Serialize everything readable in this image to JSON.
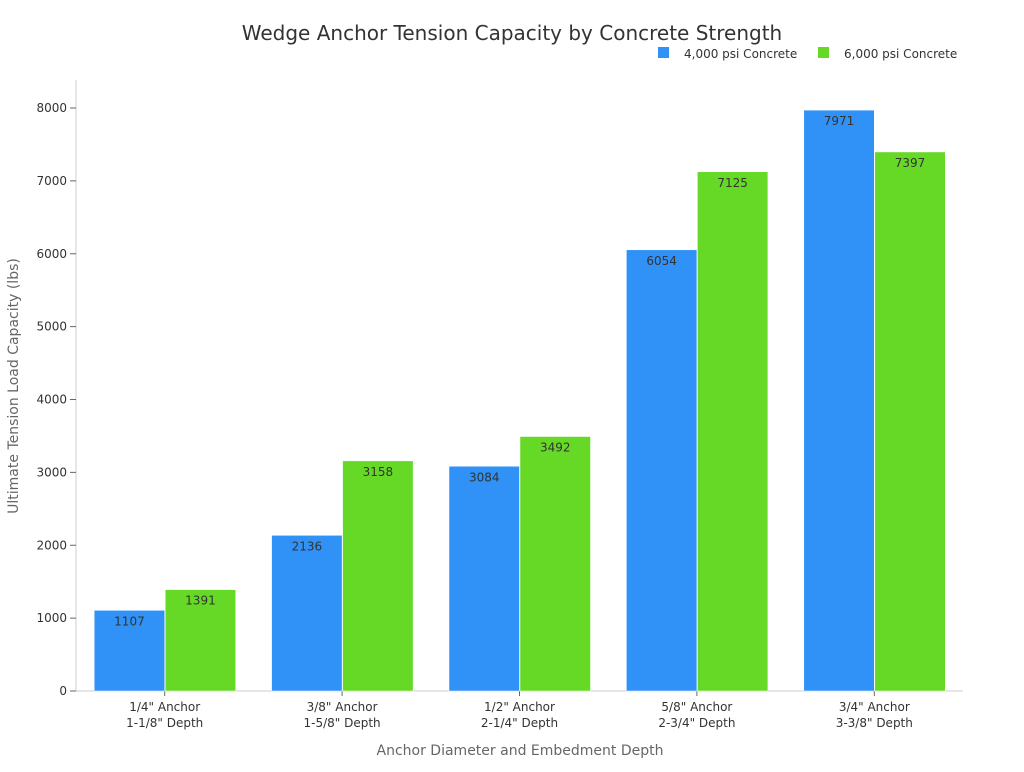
{
  "chart_data": {
    "type": "bar",
    "title": "Wedge Anchor Tension Capacity by Concrete Strength",
    "xlabel": "Anchor Diameter and Embedment Depth",
    "ylabel": "Ultimate Tension Load Capacity (lbs)",
    "ylim": [
      0,
      8400
    ],
    "yticks": [
      0,
      1000,
      2000,
      3000,
      4000,
      5000,
      6000,
      7000,
      8000
    ],
    "grid": false,
    "legend_position": "top-right",
    "categories": [
      [
        "1/4\" Anchor",
        "1-1/8\" Depth"
      ],
      [
        "3/8\" Anchor",
        "1-5/8\" Depth"
      ],
      [
        "1/2\" Anchor",
        "2-1/4\" Depth"
      ],
      [
        "5/8\" Anchor",
        "2-3/4\" Depth"
      ],
      [
        "3/4\" Anchor",
        "3-3/8\" Depth"
      ]
    ],
    "series": [
      {
        "name": "4,000 psi Concrete",
        "color": "#3091F7",
        "values": [
          1107,
          2136,
          3084,
          6054,
          7971
        ]
      },
      {
        "name": "6,000 psi Concrete",
        "color": "#66D926",
        "values": [
          1391,
          3158,
          3492,
          7125,
          7397
        ]
      }
    ]
  }
}
